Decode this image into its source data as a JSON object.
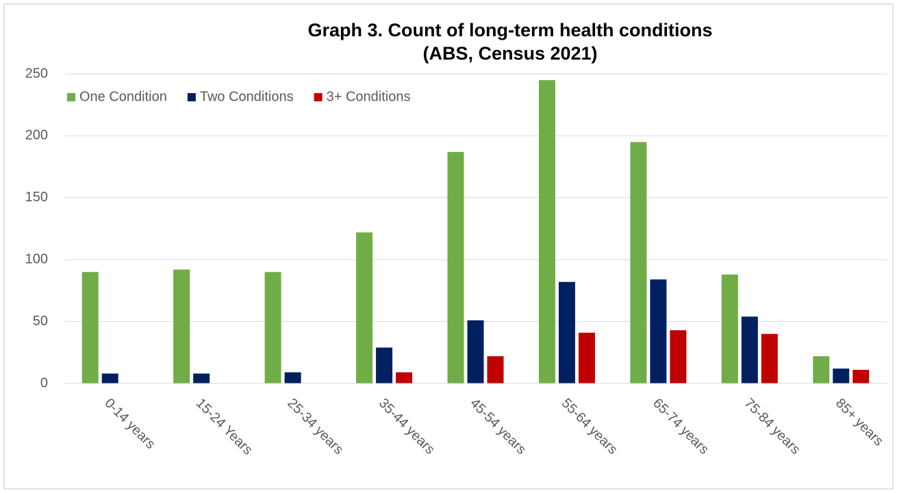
{
  "chart_data": {
    "type": "bar",
    "title": [
      "Graph 3. Count of long-term health conditions",
      "(ABS, Census 2021)"
    ],
    "categories": [
      "0-14 years",
      "15-24 Years",
      "25-34 years",
      "35-44 years",
      "45-54 years",
      "55-64 years",
      "65-74 years",
      "75-84 years",
      "85+ years"
    ],
    "series": [
      {
        "name": "One Condition",
        "color": "#70ad47",
        "values": [
          90,
          92,
          90,
          122,
          187,
          245,
          195,
          88,
          22
        ]
      },
      {
        "name": "Two Conditions",
        "color": "#002060",
        "values": [
          8,
          8,
          9,
          29,
          51,
          82,
          84,
          54,
          12
        ]
      },
      {
        "name": "3+ Conditions",
        "color": "#c00000",
        "values": [
          0,
          0,
          0,
          9,
          22,
          41,
          43,
          40,
          11
        ]
      }
    ],
    "ylim": [
      0,
      250
    ],
    "yticks": [
      0,
      50,
      100,
      150,
      200,
      250
    ],
    "grid": true,
    "legend": "top-left"
  }
}
